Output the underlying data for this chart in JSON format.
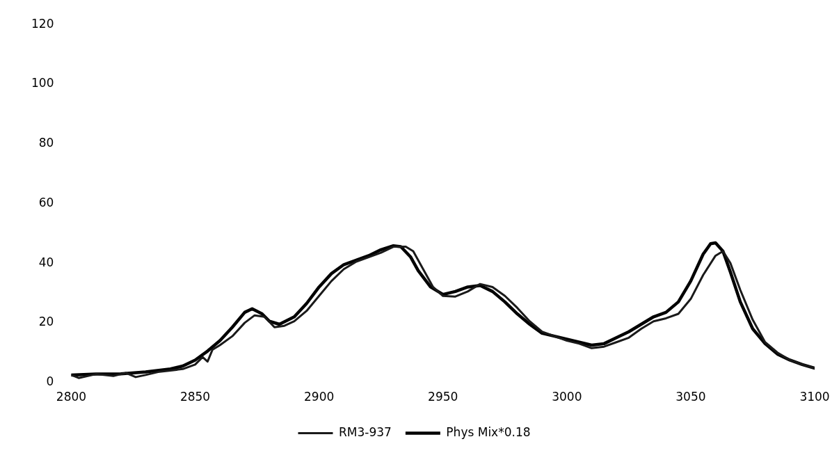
{
  "chart_data": {
    "type": "line",
    "xlim": [
      2800,
      3100
    ],
    "xticks": [
      2800,
      2850,
      2900,
      2950,
      3000,
      3050,
      3100
    ],
    "ylim": [
      0,
      120
    ],
    "yticks": [
      0,
      20,
      40,
      60,
      80,
      100,
      120
    ],
    "grid": false,
    "legend": "bottom",
    "marker": "none",
    "line_style": "solid",
    "series": [
      {
        "name": "RM3-937",
        "color": "#1a1a1a",
        "x": [
          2800,
          2803,
          2810,
          2817,
          2822,
          2826,
          2830,
          2835,
          2840,
          2845,
          2850,
          2853,
          2855,
          2857,
          2860,
          2865,
          2870,
          2874,
          2878,
          2882,
          2886,
          2890,
          2895,
          2900,
          2905,
          2910,
          2915,
          2920,
          2925,
          2930,
          2935,
          2938,
          2942,
          2946,
          2950,
          2955,
          2960,
          2965,
          2970,
          2975,
          2980,
          2985,
          2990,
          2995,
          3000,
          3005,
          3010,
          3015,
          3020,
          3025,
          3030,
          3035,
          3040,
          3045,
          3050,
          3055,
          3060,
          3063,
          3066,
          3070,
          3075,
          3080,
          3085,
          3090,
          3095,
          3100
        ],
        "values": [
          2.5,
          1.5,
          2.8,
          2.2,
          3.2,
          1.8,
          2.5,
          3.5,
          4,
          4.5,
          6,
          8.5,
          7,
          11,
          12.5,
          15.5,
          20,
          22.5,
          22,
          18.5,
          19,
          20.5,
          24,
          29,
          34,
          38,
          40.5,
          42,
          43.5,
          45.5,
          45.5,
          44,
          38,
          32,
          29,
          28.8,
          30.5,
          33,
          32,
          29,
          25,
          20.5,
          17,
          15.5,
          14,
          13,
          11.5,
          12,
          13.5,
          15,
          18,
          20.5,
          21.5,
          23,
          28,
          36,
          42.5,
          44,
          40,
          31,
          21,
          13.5,
          10,
          7.5,
          6,
          4.8
        ]
      },
      {
        "name": "Phys Mix*0.18",
        "color": "#000000",
        "x": [
          2800,
          2810,
          2820,
          2830,
          2840,
          2845,
          2850,
          2855,
          2860,
          2865,
          2870,
          2873,
          2877,
          2880,
          2884,
          2890,
          2895,
          2900,
          2905,
          2910,
          2915,
          2920,
          2925,
          2930,
          2933,
          2937,
          2940,
          2945,
          2950,
          2955,
          2960,
          2965,
          2970,
          2975,
          2980,
          2985,
          2990,
          2995,
          3000,
          3005,
          3010,
          3015,
          3020,
          3025,
          3030,
          3035,
          3040,
          3045,
          3050,
          3055,
          3058,
          3060,
          3063,
          3066,
          3070,
          3075,
          3080,
          3085,
          3090,
          3095,
          3100
        ],
        "values": [
          2.5,
          2.8,
          2.9,
          3.5,
          4.5,
          5.5,
          7.5,
          10.5,
          14,
          18.5,
          23.5,
          24.7,
          23,
          20.5,
          19.5,
          22,
          26.5,
          32,
          36.5,
          39.5,
          41,
          42.5,
          44.5,
          45.8,
          45.5,
          42,
          37.5,
          32,
          29.5,
          30.5,
          32,
          32.5,
          30.5,
          27,
          23,
          19.5,
          16.5,
          15.5,
          14.5,
          13.5,
          12.5,
          13,
          15,
          17,
          19.5,
          22,
          23.5,
          27,
          34,
          43,
          46.5,
          46.8,
          44,
          37,
          27,
          18,
          13,
          9.5,
          7.5,
          6,
          4.8
        ]
      }
    ]
  }
}
